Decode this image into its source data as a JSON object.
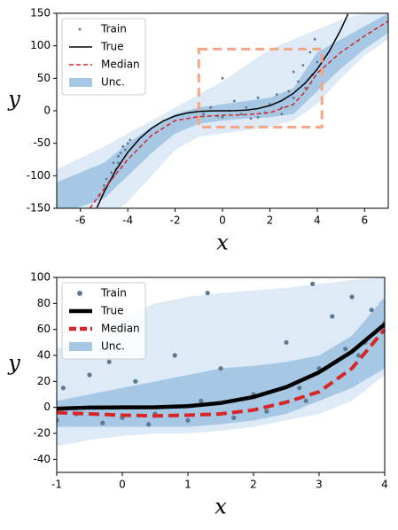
{
  "chart_data": [
    {
      "type": "line",
      "xlabel": "x",
      "ylabel": "y",
      "xlim": [
        -7,
        7
      ],
      "ylim": [
        -150,
        150
      ],
      "xticks": [
        -6,
        -4,
        -2,
        0,
        2,
        4,
        6
      ],
      "yticks": [
        -150,
        -100,
        -50,
        0,
        50,
        100,
        150
      ],
      "legend": "upper left",
      "highlight": {
        "xlim": [
          -1,
          4.2
        ],
        "ylim": [
          -25,
          95
        ],
        "color": "#f4a582"
      },
      "bands": [
        {
          "name": "Unc.",
          "color": "#deebf7",
          "x": [
            -7,
            -5,
            -4,
            -3,
            -2,
            -1,
            0,
            1,
            2,
            3,
            4,
            5,
            6,
            7
          ],
          "lower": [
            -200,
            -170,
            -140,
            -100,
            -60,
            -40,
            -35,
            -30,
            -25,
            -15,
            10,
            50,
            85,
            110
          ],
          "upper": [
            -90,
            -55,
            -35,
            -15,
            5,
            25,
            45,
            70,
            95,
            110,
            125,
            140,
            150,
            165
          ]
        },
        {
          "color": "#a6c8e4",
          "x": [
            -7,
            -5,
            -4,
            -3,
            -2,
            -1,
            0,
            1,
            2,
            3,
            4,
            5,
            6,
            7
          ],
          "lower": [
            -160,
            -135,
            -100,
            -65,
            -35,
            -20,
            -15,
            -12,
            -10,
            -5,
            30,
            65,
            95,
            120
          ],
          "upper": [
            -110,
            -80,
            -50,
            -25,
            -5,
            5,
            10,
            15,
            20,
            35,
            90,
            110,
            130,
            150
          ]
        }
      ],
      "train": {
        "name": "Train",
        "color": "#5e7a91",
        "x": [
          -5.2,
          -5,
          -4.9,
          -4.7,
          -4.6,
          -4.5,
          -4.4,
          -4.3,
          -4.2,
          -4.1,
          -4,
          -3.9,
          -4.6,
          -4.8,
          -4.4,
          -1,
          -0.8,
          -0.5,
          -0.2,
          0,
          0.3,
          0.5,
          0.8,
          1,
          1.2,
          1.5,
          1.8,
          2,
          2.3,
          2.5,
          2.8,
          3,
          3.2,
          3.4,
          3.5,
          3.7,
          3.8,
          4,
          3.9,
          0,
          1.5,
          2.5,
          3
        ],
        "values": [
          -130,
          -115,
          -105,
          -95,
          -80,
          -90,
          -70,
          -65,
          -55,
          -60,
          -50,
          -45,
          -100,
          -110,
          -80,
          -10,
          -5,
          5,
          -8,
          -10,
          0,
          15,
          -5,
          5,
          -12,
          20,
          -3,
          10,
          25,
          5,
          30,
          20,
          45,
          70,
          35,
          90,
          55,
          75,
          110,
          50,
          -10,
          -5,
          60
        ]
      },
      "series": [
        {
          "name": "True",
          "color": "#000000",
          "dash": false,
          "x": [
            -5.3,
            -5,
            -4.5,
            -4,
            -3.5,
            -3,
            -2.5,
            -2,
            -1.5,
            -1,
            -0.5,
            0,
            0.5,
            1,
            1.5,
            2,
            2.5,
            3,
            3.5,
            4,
            4.5,
            5,
            5.3
          ],
          "values": [
            -148.9,
            -125,
            -91.1,
            -64,
            -42.9,
            -27,
            -15.6,
            -8,
            -3.4,
            -1,
            -0.1,
            0,
            0.1,
            1,
            3.4,
            8,
            15.6,
            27,
            42.9,
            64,
            91.1,
            125,
            148.9
          ]
        },
        {
          "name": "Median",
          "color": "#d62728",
          "dash": true,
          "x": [
            -5.6,
            -5,
            -4,
            -3,
            -2,
            -1,
            0,
            1,
            2,
            3,
            3.5,
            4,
            5,
            6,
            7
          ],
          "values": [
            -150,
            -120,
            -75,
            -38,
            -15,
            -9,
            -7,
            -6,
            -3,
            10,
            30,
            58,
            90,
            115,
            138
          ]
        }
      ]
    },
    {
      "type": "line",
      "xlabel": "x",
      "ylabel": "y",
      "xlim": [
        -1,
        4
      ],
      "ylim": [
        -50,
        100
      ],
      "xticks": [
        -1,
        0,
        1,
        2,
        3,
        4
      ],
      "yticks": [
        -40,
        -20,
        0,
        20,
        40,
        60,
        80,
        100
      ],
      "legend": "upper left",
      "bands": [
        {
          "name": "Unc.",
          "color": "#deebf7",
          "x": [
            -1,
            -0.5,
            0,
            0.5,
            1,
            1.5,
            2,
            2.5,
            3,
            3.5,
            4
          ],
          "lower": [
            -30,
            -25,
            -22,
            -20,
            -20,
            -18,
            -15,
            -10,
            -5,
            5,
            25
          ],
          "upper": [
            45,
            55,
            70,
            80,
            85,
            88,
            90,
            92,
            95,
            98,
            100
          ]
        },
        {
          "color": "#a6c8e4",
          "x": [
            -1,
            -0.5,
            0,
            0.5,
            1,
            1.5,
            2,
            2.5,
            3,
            3.5,
            4
          ],
          "lower": [
            -15,
            -15,
            -15,
            -15,
            -15,
            -13,
            -10,
            -5,
            5,
            15,
            30
          ],
          "upper": [
            5,
            10,
            15,
            20,
            25,
            30,
            32,
            35,
            40,
            55,
            85
          ]
        }
      ],
      "train": {
        "name": "Train",
        "color": "#5e7a91",
        "x": [
          -1,
          -0.9,
          -0.7,
          -0.5,
          -0.3,
          0,
          0.2,
          0.5,
          0.8,
          1,
          1.2,
          1.5,
          1.7,
          2,
          2.2,
          2.5,
          2.7,
          2.9,
          3,
          3.2,
          3.4,
          3.5,
          3.7,
          3.8,
          4,
          1.3,
          0.4,
          2.8,
          3.6,
          -0.2
        ],
        "values": [
          -10,
          15,
          -5,
          25,
          -12,
          -8,
          20,
          -5,
          40,
          -10,
          5,
          30,
          -8,
          10,
          -3,
          50,
          15,
          95,
          30,
          70,
          45,
          85,
          50,
          75,
          65,
          88,
          -13,
          5,
          40,
          35
        ]
      },
      "series": [
        {
          "name": "True",
          "color": "#000000",
          "dash": false,
          "x": [
            -1,
            -0.5,
            0,
            0.5,
            1,
            1.5,
            2,
            2.5,
            3,
            3.5,
            4
          ],
          "values": [
            -1,
            -0.1,
            0,
            0.1,
            1,
            3.4,
            8,
            15.6,
            27,
            42.9,
            64
          ]
        },
        {
          "name": "Median",
          "color": "#d62728",
          "dash": true,
          "x": [
            -1,
            -0.5,
            0,
            0.5,
            1,
            1.5,
            2,
            2.5,
            3,
            3.5,
            4
          ],
          "values": [
            -4,
            -5,
            -6,
            -6.5,
            -6,
            -5,
            -2,
            4,
            12,
            30,
            60
          ]
        }
      ]
    }
  ]
}
